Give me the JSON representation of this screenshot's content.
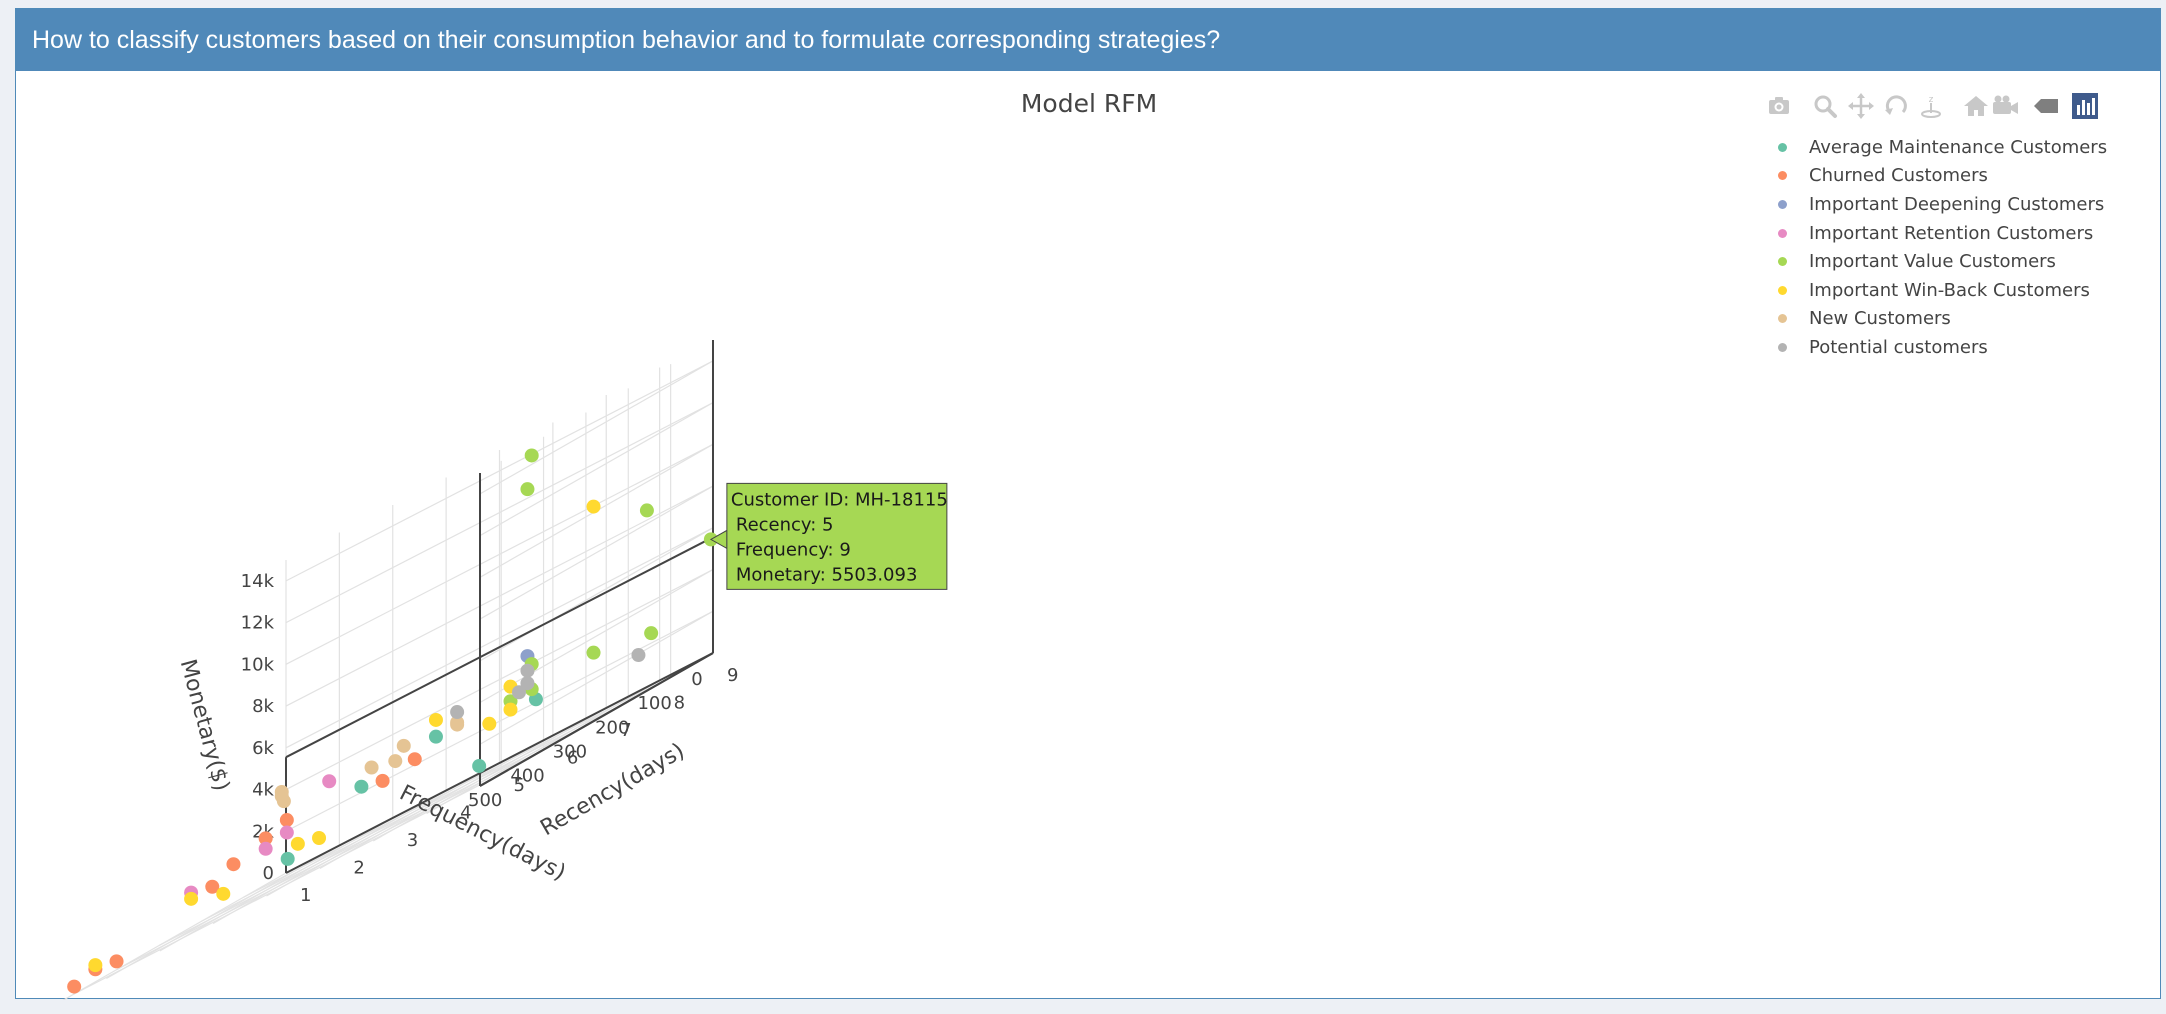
{
  "header": {
    "title": "How to classify customers based on their consumption behavior and to formulate corresponding strategies?"
  },
  "modebar": [
    {
      "icon": "camera-icon"
    },
    {
      "icon": "zoom-icon"
    },
    {
      "icon": "pan-icon"
    },
    {
      "icon": "orbit-rotation-icon"
    },
    {
      "icon": "turntable-rotation-icon"
    },
    {
      "icon": "reset-camera-icon"
    },
    {
      "icon": "camera-view-icon"
    },
    {
      "icon": "hover-closest-icon"
    },
    {
      "icon": "plotly-logo-icon"
    }
  ],
  "chart_data": {
    "type": "scatter3d",
    "title": "Model RFM",
    "xlabel": "Recency(days)",
    "ylabel": "Frequency(days)",
    "zlabel": "Monetary($)",
    "xlim": [
      0,
      550
    ],
    "ylim": [
      1,
      9
    ],
    "zlim": [
      0,
      15000
    ],
    "x_ticks": [
      "0",
      "100",
      "200",
      "300",
      "400",
      "500"
    ],
    "y_ticks": [
      "1",
      "2",
      "3",
      "4",
      "5",
      "6",
      "7",
      "8",
      "9"
    ],
    "z_ticks": [
      "0",
      "2k",
      "4k",
      "6k",
      "8k",
      "10k",
      "12k",
      "14k"
    ],
    "legend_position": "top-right",
    "series": [
      {
        "name": "Average Maintenance Customers",
        "color": "#66c2a5",
        "points": [
          [
            500,
            5,
            1200
          ],
          [
            200,
            4,
            2500
          ],
          [
            40,
            6,
            2200
          ],
          [
            300,
            7,
            700
          ],
          [
            150,
            5,
            3000
          ]
        ]
      },
      {
        "name": "Churned Customers",
        "color": "#fc8d62",
        "points": [
          [
            500,
            1,
            350
          ],
          [
            450,
            1,
            600
          ],
          [
            400,
            1,
            400
          ],
          [
            300,
            2,
            1500
          ],
          [
            250,
            2,
            2000
          ],
          [
            300,
            3,
            2500
          ],
          [
            200,
            5,
            2500
          ],
          [
            250,
            3,
            2800
          ],
          [
            150,
            4,
            2200
          ]
        ]
      },
      {
        "name": "Important Deepening Customers",
        "color": "#8da0cb",
        "points": [
          [
            60,
            6,
            4500
          ]
        ]
      },
      {
        "name": "Important Retention Customers",
        "color": "#e78ac3",
        "points": [
          [
            350,
            2,
            1800
          ],
          [
            300,
            3,
            2000
          ],
          [
            250,
            3,
            2200
          ],
          [
            150,
            3,
            3500
          ]
        ]
      },
      {
        "name": "Important Value Customers",
        "color": "#a6d854",
        "points": [
          [
            5,
            9,
            5503.093
          ],
          [
            50,
            6,
            14000
          ],
          [
            60,
            6,
            12500
          ],
          [
            30,
            8,
            8500
          ],
          [
            50,
            6,
            4000
          ],
          [
            30,
            7,
            3000
          ],
          [
            20,
            8,
            2500
          ],
          [
            50,
            6,
            2800
          ],
          [
            100,
            6,
            2800
          ]
        ]
      },
      {
        "name": "Important Win-Back Customers",
        "color": "#ffd92f",
        "points": [
          [
            30,
            7,
            10000
          ],
          [
            450,
            1,
            800
          ],
          [
            350,
            2,
            1500
          ],
          [
            400,
            3,
            1000
          ],
          [
            300,
            4,
            1200
          ],
          [
            350,
            4,
            1500
          ],
          [
            150,
            5,
            3800
          ],
          [
            100,
            6,
            3500
          ],
          [
            100,
            6,
            2400
          ],
          [
            150,
            6,
            2300
          ]
        ]
      },
      {
        "name": "New Customers",
        "color": "#e5c494",
        "points": [
          [
            5,
            1,
            3500
          ],
          [
            10,
            1,
            4000
          ],
          [
            10,
            1,
            3800
          ],
          [
            50,
            3,
            3000
          ],
          [
            100,
            5,
            3100
          ],
          [
            100,
            4,
            3300
          ],
          [
            120,
            4,
            2800
          ],
          [
            100,
            5,
            3000
          ]
        ]
      },
      {
        "name": "Potential customers",
        "color": "#b3b3b3",
        "points": [
          [
            60,
            6,
            3800
          ],
          [
            60,
            6,
            3200
          ],
          [
            80,
            6,
            3000
          ],
          [
            50,
            8,
            1800
          ],
          [
            100,
            5,
            3600
          ]
        ]
      }
    ],
    "tooltip": {
      "lines": [
        "Customer ID: MH-18115",
        "Recency: 5",
        "Frequency: 9",
        "Monetary: 5503.093"
      ],
      "color": "#a6d854"
    }
  }
}
